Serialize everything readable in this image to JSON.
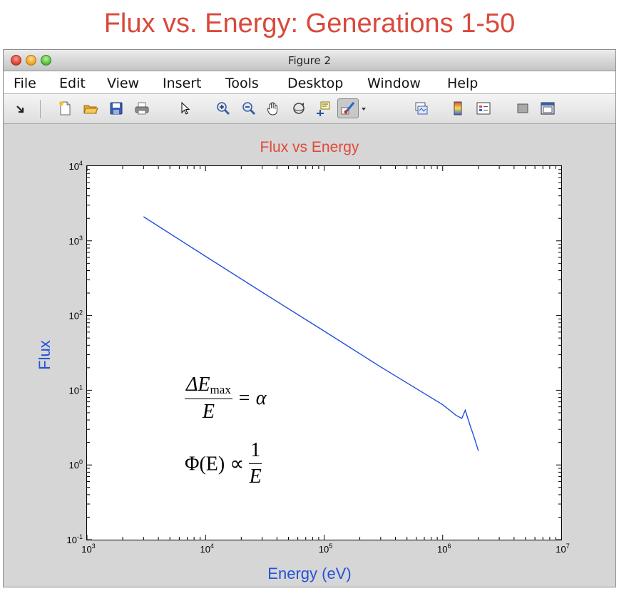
{
  "slide": {
    "title": "Flux vs. Energy: Generations 1-50"
  },
  "window": {
    "title": "Figure 2"
  },
  "menu": [
    "File",
    "Edit",
    "View",
    "Insert",
    "Tools",
    "Desktop",
    "Window",
    "Help"
  ],
  "toolbar": {
    "icons": [
      "dock-arrow-icon",
      "new-figure-icon",
      "open-file-icon",
      "save-icon",
      "print-icon",
      "pointer-arrow-icon",
      "zoom-in-icon",
      "zoom-out-icon",
      "pan-hand-icon",
      "rotate-3d-icon",
      "data-cursor-icon",
      "brush-icon",
      "brush-dropdown-icon",
      "link-plot-icon",
      "colorbar-icon",
      "legend-icon",
      "hide-plot-tools-icon",
      "show-plot-tools-icon"
    ]
  },
  "chart_data": {
    "type": "line",
    "title": "Flux vs Energy",
    "xlabel": "Energy (eV)",
    "ylabel": "Flux",
    "xscale": "log",
    "yscale": "log",
    "xlim": [
      1000,
      10000000
    ],
    "ylim": [
      0.1,
      10000
    ],
    "x_ticks": [
      1000,
      10000,
      100000,
      1000000,
      10000000
    ],
    "x_tick_labels": [
      "10^3",
      "10^4",
      "10^5",
      "10^6",
      "10^7"
    ],
    "y_ticks": [
      0.1,
      1,
      10,
      100,
      1000,
      10000
    ],
    "y_tick_labels": [
      "10^-1",
      "10^0",
      "10^1",
      "10^2",
      "10^3",
      "10^4"
    ],
    "grid": false,
    "series": [
      {
        "color": "#1f4fe0",
        "x": [
          3000,
          10000,
          30000,
          100000,
          300000,
          600000,
          1000000,
          1300000,
          1450000,
          1550000,
          1700000,
          1850000,
          2000000
        ],
        "y": [
          2100,
          620,
          205,
          62,
          20.5,
          10.5,
          6.4,
          4.6,
          4.2,
          5.4,
          3.4,
          2.3,
          1.55
        ]
      }
    ],
    "annotations": {
      "eq1": {
        "numerator_var": "ΔE",
        "numerator_sub": "max",
        "denominator": "E",
        "rhs": "= α"
      },
      "eq2": {
        "lhs": "Φ(E) ∝",
        "numerator": "1",
        "denominator": "E"
      }
    }
  },
  "colors": {
    "slide_title": "#d9493b",
    "plot_title": "#e04a3a",
    "axis_label": "#2452d8",
    "line": "#1f4fe0"
  }
}
